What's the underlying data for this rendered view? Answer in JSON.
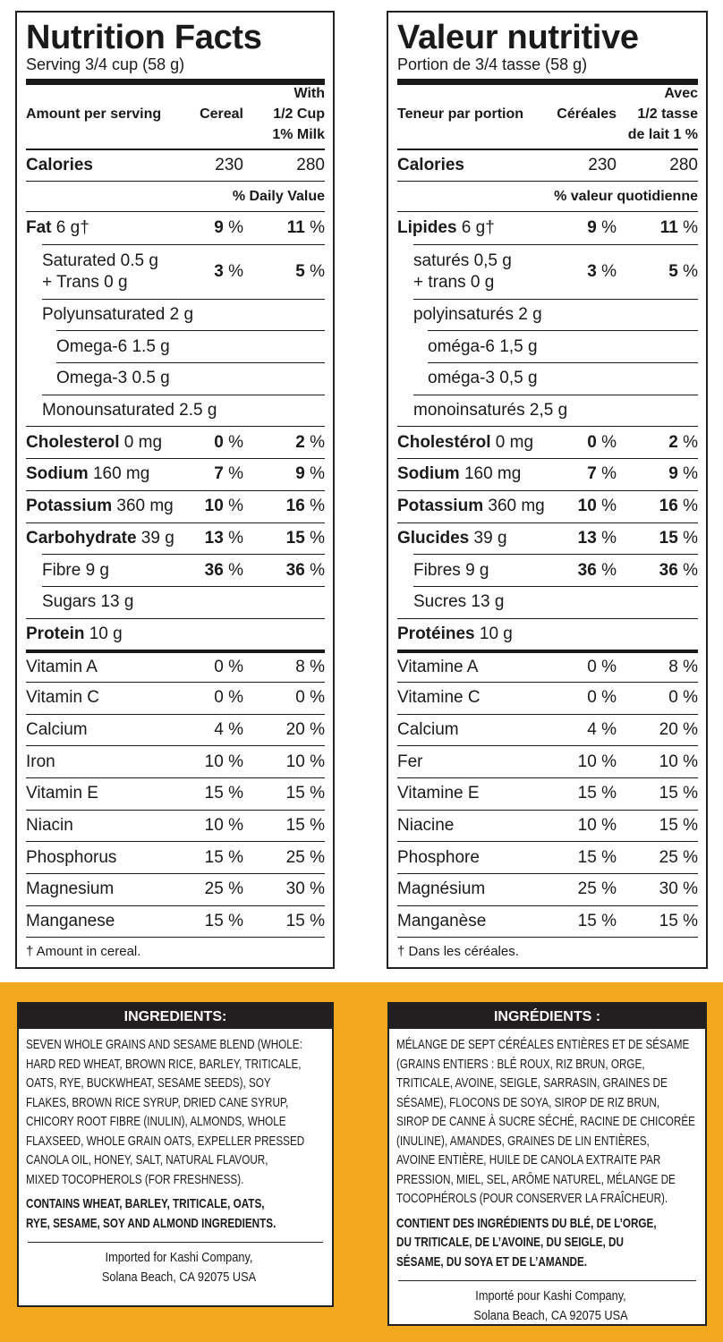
{
  "en": {
    "title": "Nutrition Facts",
    "serving": "Serving 3/4 cup (58 g)",
    "col_amount": "Amount per serving",
    "col_cereal": "Cereal",
    "col_milk": "With\n1/2 Cup\n1% Milk",
    "calories_label": "Calories",
    "calories_cereal": "230",
    "calories_milk": "280",
    "dv_label": "% Daily Value",
    "rows": [
      {
        "b": "Fat",
        "r": " 6 g†",
        "c": "9",
        "m": "11",
        "bold": true
      },
      {
        "r": "Saturated 0.5 g\n+ Trans 0 g",
        "c": "3",
        "m": "5",
        "bold": true,
        "indent": 1,
        "tall": true
      },
      {
        "r": "Polyunsaturated 2 g",
        "indent": 1
      },
      {
        "r": "Omega-6  1.5 g",
        "indent": 2
      },
      {
        "r": "Omega-3  0.5 g",
        "indent": 2
      },
      {
        "r": "Monounsaturated 2.5 g",
        "indent": 1
      },
      {
        "b": "Cholesterol",
        "r": " 0 mg",
        "c": "0",
        "m": "2",
        "bold": true
      },
      {
        "b": "Sodium",
        "r": " 160 mg",
        "c": "7",
        "m": "9",
        "bold": true
      },
      {
        "b": "Potassium",
        "r": " 360 mg",
        "c": "10",
        "m": "16",
        "bold": true
      },
      {
        "b": "Carbohydrate",
        "r": " 39 g",
        "c": "13",
        "m": "15",
        "bold": true
      },
      {
        "r": "Fibre 9 g",
        "c": "36",
        "m": "36",
        "bold": true,
        "indent": 1
      },
      {
        "r": "Sugars 13 g",
        "indent": 1
      },
      {
        "b": "Protein",
        "r": " 10 g"
      },
      {
        "r": "Vitamin A",
        "c": "0",
        "m": "8",
        "thick": true
      },
      {
        "r": "Vitamin C",
        "c": "0",
        "m": "0"
      },
      {
        "r": "Calcium",
        "c": "4",
        "m": "20"
      },
      {
        "r": "Iron",
        "c": "10",
        "m": "10"
      },
      {
        "r": "Vitamin E",
        "c": "15",
        "m": "15"
      },
      {
        "r": "Niacin",
        "c": "10",
        "m": "15"
      },
      {
        "r": "Phosphorus",
        "c": "15",
        "m": "25"
      },
      {
        "r": "Magnesium",
        "c": "25",
        "m": "30"
      },
      {
        "r": "Manganese",
        "c": "15",
        "m": "15"
      }
    ],
    "footnote": "† Amount in cereal.",
    "ingredients_title": "INGREDIENTS:",
    "ingredients_lines": [
      "SEVEN WHOLE GRAINS AND SESAME BLEND (WHOLE:",
      "HARD RED WHEAT, BROWN RICE, BARLEY, TRITICALE,",
      "OATS, RYE, BUCKWHEAT, SESAME SEEDS), SOY",
      "FLAKES, BROWN RICE SYRUP, DRIED CANE SYRUP,",
      "CHICORY ROOT FIBRE (INULIN), ALMONDS, WHOLE",
      "FLAXSEED, WHOLE GRAIN OATS, EXPELLER PRESSED",
      "CANOLA OIL, HONEY, SALT, NATURAL FLAVOUR,",
      "MIXED TOCOPHEROLS (FOR FRESHNESS)."
    ],
    "contains_lines": [
      "CONTAINS WHEAT, BARLEY, TRITICALE, OATS,",
      "RYE, SESAME, SOY AND ALMOND INGREDIENTS."
    ],
    "imported": [
      "Imported for Kashi Company,",
      "Solana Beach, CA 92075  USA"
    ]
  },
  "fr": {
    "title": "Valeur nutritive",
    "serving": "Portion de 3/4 tasse (58 g)",
    "col_amount": "Teneur par portion",
    "col_cereal": "Céréales",
    "col_milk": "Avec\n1/2 tasse\nde lait 1 %",
    "calories_label": "Calories",
    "calories_cereal": "230",
    "calories_milk": "280",
    "dv_label": "% valeur quotidienne",
    "rows": [
      {
        "b": "Lipides",
        "r": " 6 g†",
        "c": "9",
        "m": "11",
        "bold": true
      },
      {
        "r": "saturés 0,5 g\n+ trans 0 g",
        "c": "3",
        "m": "5",
        "bold": true,
        "indent": 1,
        "tall": true
      },
      {
        "r": "polyinsaturés 2 g",
        "indent": 1
      },
      {
        "r": "oméga-6  1,5 g",
        "indent": 2
      },
      {
        "r": "oméga-3  0,5 g",
        "indent": 2
      },
      {
        "r": "monoinsaturés 2,5 g",
        "indent": 1
      },
      {
        "b": "Cholestérol",
        "r": " 0 mg",
        "c": "0",
        "m": "2",
        "bold": true
      },
      {
        "b": "Sodium",
        "r": " 160 mg",
        "c": "7",
        "m": "9",
        "bold": true
      },
      {
        "b": "Potassium",
        "r": " 360 mg",
        "c": "10",
        "m": "16",
        "bold": true
      },
      {
        "b": "Glucides",
        "r": " 39 g",
        "c": "13",
        "m": "15",
        "bold": true
      },
      {
        "r": "Fibres 9 g",
        "c": "36",
        "m": "36",
        "bold": true,
        "indent": 1
      },
      {
        "r": "Sucres 13 g",
        "indent": 1
      },
      {
        "b": "Protéines",
        "r": " 10 g"
      },
      {
        "r": "Vitamine A",
        "c": "0",
        "m": "8",
        "thick": true
      },
      {
        "r": "Vitamine C",
        "c": "0",
        "m": "0"
      },
      {
        "r": "Calcium",
        "c": "4",
        "m": "20"
      },
      {
        "r": "Fer",
        "c": "10",
        "m": "10"
      },
      {
        "r": "Vitamine E",
        "c": "15",
        "m": "15"
      },
      {
        "r": "Niacine",
        "c": "10",
        "m": "15"
      },
      {
        "r": "Phosphore",
        "c": "15",
        "m": "25"
      },
      {
        "r": "Magnésium",
        "c": "25",
        "m": "30"
      },
      {
        "r": "Manganèse",
        "c": "15",
        "m": "15"
      }
    ],
    "footnote": "† Dans les céréales.",
    "ingredients_title": "INGRÉDIENTS :",
    "ingredients_lines": [
      "MÉLANGE DE SEPT CÉRÉALES ENTIÈRES ET DE SÉSAME",
      "(GRAINS ENTIERS : BLÉ ROUX, RIZ BRUN, ORGE,",
      "TRITICALE, AVOINE, SEIGLE, SARRASIN, GRAINES DE",
      "SÉSAME), FLOCONS DE SOYA, SIROP DE RIZ BRUN,",
      "SIROP DE CANNE À SUCRE SÉCHÉ, RACINE DE CHICORÉE",
      "(INULINE), AMANDES, GRAINES DE LIN ENTIÈRES,",
      "AVOINE ENTIÈRE, HUILE DE CANOLA EXTRAITE PAR",
      "PRESSION, MIEL, SEL, ARÔME NATUREL, MÉLANGE DE",
      "TOCOPHÉROLS (POUR CONSERVER LA FRAÎCHEUR)."
    ],
    "contains_lines": [
      "CONTIENT DES INGRÉDIENTS DU BLÉ, DE L’ORGE,",
      "DU TRITICALE, DE L’AVOINE, DU SEIGLE, DU",
      "SÉSAME, DU SOYA ET DE L’AMANDE."
    ],
    "imported": [
      "Importé pour Kashi Company,",
      "Solana Beach, CA 92075  USA"
    ]
  },
  "colors": {
    "background_band": "#f2a81d",
    "bar": "#231f20"
  }
}
